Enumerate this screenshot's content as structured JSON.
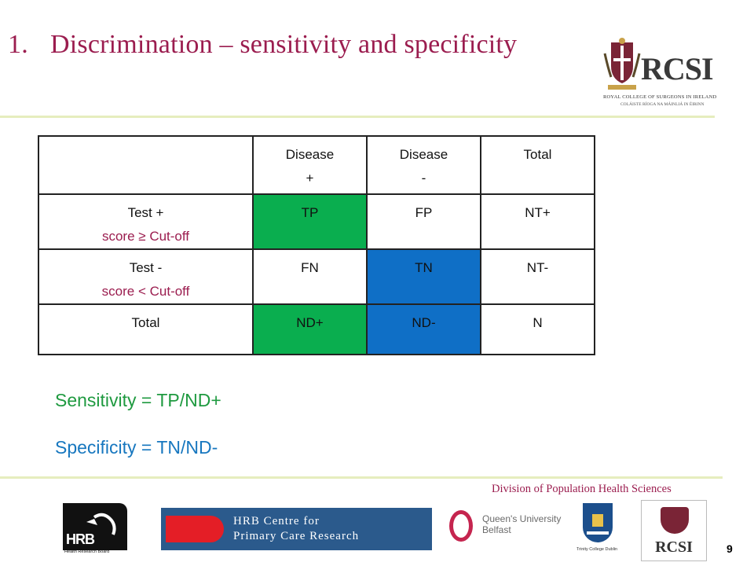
{
  "slide": {
    "title_number": "1.",
    "title": "Discrimination – sensitivity and specificity",
    "page_number": "9",
    "footer_division": "Division of Population Health Sciences"
  },
  "top_logo": {
    "acronym": "RCSI",
    "line1": "ROYAL COLLEGE OF SURGEONS IN IRELAND",
    "line2": "COLÁISTE RÍOGA NA MÁINLIÁ IN ÉIRINN"
  },
  "table": {
    "header": {
      "c0": "",
      "c1_line1": "Disease",
      "c1_line2": "+",
      "c2_line1": "Disease",
      "c2_line2": "-",
      "c3": "Total"
    },
    "rows": [
      {
        "label": "Test +",
        "sublabel": "score ≥ Cut-off",
        "c1": "TP",
        "c2": "FP",
        "c3": "NT+"
      },
      {
        "label": "Test -",
        "sublabel": "score < Cut-off",
        "c1": "FN",
        "c2": "TN",
        "c3": "NT-"
      },
      {
        "label": "Total",
        "sublabel": "",
        "c1": "ND+",
        "c2": "ND-",
        "c3": "N"
      }
    ]
  },
  "formulas": {
    "sensitivity": "Sensitivity = TP/ND+",
    "specificity": "Specificity = TN/ND-"
  },
  "footer_logos": {
    "hrb_acronym": "HRB",
    "hrb_tagline": "Health Research Board",
    "hrb_centre_line1": "HRB Centre for",
    "hrb_centre_line2": "Primary Care Research",
    "qub_line1": "Queen's University",
    "qub_line2": "Belfast",
    "tcd_label": "Trinity College Dublin",
    "rcsi_acronym": "RCSI"
  },
  "colors": {
    "title": "#9b1d4f",
    "green_cells": "#0aae4f",
    "blue_cells": "#0f6fc6",
    "sensitivity_text": "#1f9a40",
    "specificity_text": "#1777bf",
    "rule": "#e6edbe"
  }
}
